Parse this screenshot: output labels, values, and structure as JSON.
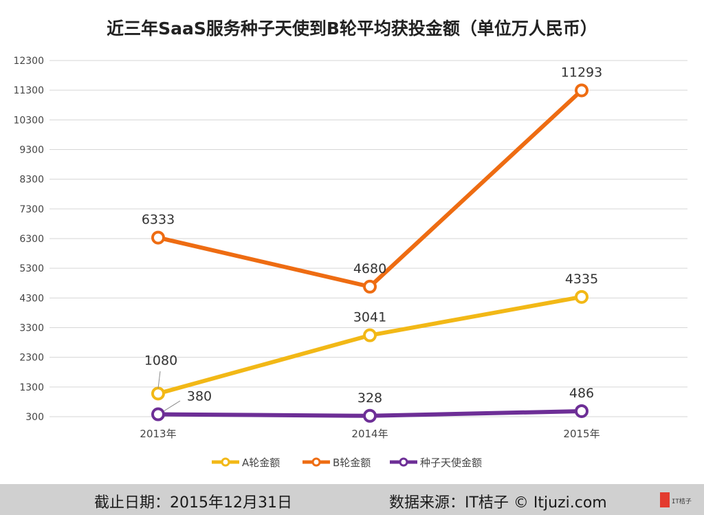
{
  "chart_data": {
    "type": "line",
    "title": "近三年SaaS服务种子天使到B轮平均获投金额（单位万人民币）",
    "categories": [
      "2013年",
      "2014年",
      "2015年"
    ],
    "y_ticks": [
      300,
      1300,
      2300,
      3300,
      4300,
      5300,
      6300,
      7300,
      8300,
      9300,
      10300,
      11300,
      12300
    ],
    "ylim": [
      300,
      12300
    ],
    "grid": true,
    "legend_position": "bottom",
    "series": [
      {
        "name": "A轮金额",
        "values": [
          1080,
          3041,
          4335
        ],
        "labels": [
          "1080",
          "3041",
          "4335"
        ],
        "color": "#f2b816"
      },
      {
        "name": "B轮金额",
        "values": [
          6333,
          4680,
          11293
        ],
        "labels": [
          "6333",
          "4680",
          "11293"
        ],
        "color": "#ee6c12"
      },
      {
        "name": "种子天使金额",
        "values": [
          380,
          328,
          486
        ],
        "labels": [
          "380",
          "328",
          "486"
        ],
        "color": "#6d2e96"
      }
    ]
  },
  "footer": {
    "date_text": "截止日期：2015年12月31日",
    "source_text": "数据来源：IT桔子 © Itjuzi.com"
  },
  "colors": {
    "grid": "#d6d6d6",
    "axis_text": "#444444",
    "footer_bg": "#d0d0d0"
  }
}
